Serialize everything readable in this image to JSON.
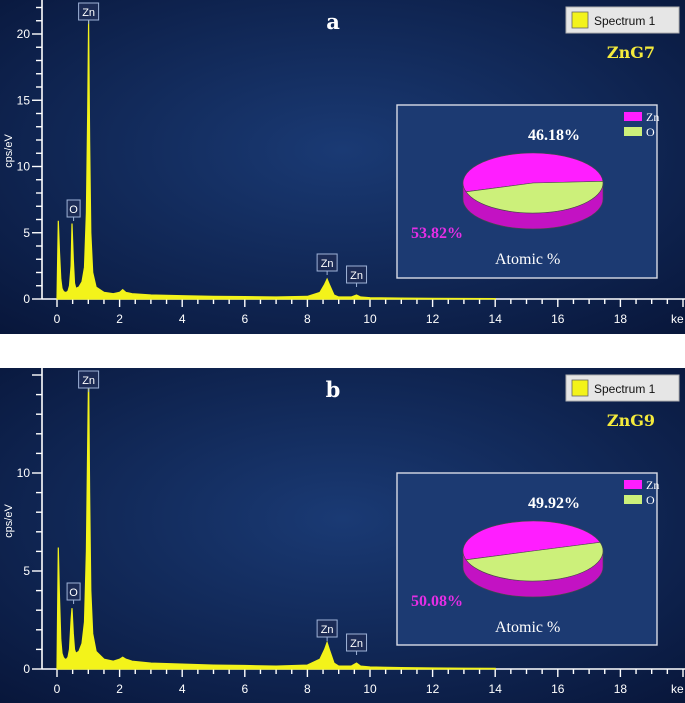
{
  "chart_data": [
    {
      "type": "line",
      "panel_label": "a",
      "sample": "ZnG7",
      "legend_label": "Spectrum 1",
      "ylabel": "cps/eV",
      "xlabel": "ke",
      "xlim": [
        -0.2,
        19.8
      ],
      "ylim": [
        0,
        22
      ],
      "xticks": [
        0,
        2,
        4,
        6,
        8,
        10,
        12,
        14,
        16,
        18
      ],
      "yticks": [
        0,
        5,
        10,
        15,
        20
      ],
      "series": [
        {
          "x": [
            0.0,
            0.04,
            0.08,
            0.12,
            0.16,
            0.2,
            0.25,
            0.3,
            0.35,
            0.4,
            0.45,
            0.48,
            0.52,
            0.56,
            0.6,
            0.7,
            0.8,
            0.88,
            0.94,
            0.98,
            1.01,
            1.04,
            1.08,
            1.14,
            1.25,
            1.5,
            1.8,
            2.0,
            2.1,
            2.2,
            2.4,
            3.0,
            4.0,
            5.0,
            6.0,
            7.0,
            8.0,
            8.4,
            8.55,
            8.63,
            8.7,
            8.85,
            9.0,
            9.4,
            9.57,
            9.7,
            10.0,
            11.0,
            12.0,
            13.0,
            14.0
          ],
          "y": [
            0.0,
            5.9,
            3.5,
            1.5,
            0.8,
            0.6,
            0.5,
            0.5,
            0.6,
            1.0,
            2.5,
            5.7,
            3.0,
            1.2,
            0.8,
            0.9,
            1.3,
            2.4,
            6.5,
            14.0,
            21.0,
            12.0,
            5.0,
            2.0,
            0.9,
            0.5,
            0.4,
            0.5,
            0.7,
            0.5,
            0.4,
            0.3,
            0.25,
            0.2,
            0.18,
            0.15,
            0.2,
            0.5,
            1.1,
            1.5,
            1.1,
            0.3,
            0.15,
            0.15,
            0.3,
            0.15,
            0.1,
            0.07,
            0.05,
            0.04,
            0.03
          ]
        }
      ],
      "peaks": [
        {
          "label": "Zn",
          "x": 1.01
        },
        {
          "label": "O",
          "x": 0.53
        },
        {
          "label": "Zn",
          "x": 8.63
        },
        {
          "label": "Zn",
          "x": 9.57
        }
      ],
      "inset_pie": {
        "type": "pie",
        "title": "Atomic %",
        "slices": [
          {
            "label": "Zn",
            "value": 53.82,
            "text": "53.82%",
            "color": "#ff1eff"
          },
          {
            "label": "O",
            "value": 46.18,
            "text": "46.18%",
            "color": "#ccf07a"
          }
        ]
      }
    },
    {
      "type": "line",
      "panel_label": "b",
      "sample": "ZnG9",
      "legend_label": "Spectrum 1",
      "ylabel": "cps/eV",
      "xlabel": "ke",
      "xlim": [
        -0.2,
        19.8
      ],
      "ylim": [
        0,
        15.4
      ],
      "xticks": [
        0,
        2,
        4,
        6,
        8,
        10,
        12,
        14,
        16,
        18
      ],
      "yticks": [
        0,
        5,
        10
      ],
      "series": [
        {
          "x": [
            0.0,
            0.04,
            0.08,
            0.12,
            0.16,
            0.2,
            0.25,
            0.3,
            0.35,
            0.4,
            0.45,
            0.48,
            0.52,
            0.56,
            0.6,
            0.7,
            0.8,
            0.88,
            0.94,
            0.98,
            1.01,
            1.04,
            1.08,
            1.14,
            1.25,
            1.5,
            1.8,
            2.0,
            2.1,
            2.2,
            2.4,
            3.0,
            4.0,
            5.0,
            6.0,
            7.0,
            8.0,
            8.4,
            8.55,
            8.63,
            8.7,
            8.85,
            9.0,
            9.4,
            9.57,
            9.7,
            10.0,
            11.0,
            12.0,
            13.0,
            14.0
          ],
          "y": [
            0.0,
            6.2,
            3.6,
            1.5,
            0.8,
            0.6,
            0.5,
            0.5,
            0.6,
            1.0,
            2.5,
            3.1,
            1.8,
            1.0,
            0.8,
            0.9,
            1.3,
            2.4,
            6.0,
            11.5,
            15.2,
            9.0,
            4.0,
            1.8,
            0.9,
            0.5,
            0.4,
            0.5,
            0.6,
            0.5,
            0.4,
            0.3,
            0.25,
            0.2,
            0.18,
            0.15,
            0.2,
            0.5,
            1.0,
            1.35,
            1.0,
            0.3,
            0.15,
            0.15,
            0.3,
            0.15,
            0.1,
            0.07,
            0.05,
            0.04,
            0.03
          ]
        }
      ],
      "peaks": [
        {
          "label": "Zn",
          "x": 1.01
        },
        {
          "label": "O",
          "x": 0.53
        },
        {
          "label": "Zn",
          "x": 8.63
        },
        {
          "label": "Zn",
          "x": 9.57
        }
      ],
      "inset_pie": {
        "type": "pie",
        "title": "Atomic %",
        "slices": [
          {
            "label": "Zn",
            "value": 50.08,
            "text": "50.08%",
            "color": "#ff1eff"
          },
          {
            "label": "O",
            "value": 49.92,
            "text": "49.92%",
            "color": "#ccf07a"
          }
        ]
      }
    }
  ],
  "colors": {
    "background_center": "#1a3a74",
    "background_edge": "#08163a",
    "spectrum": "#f3f31a",
    "axis": "#ffffff",
    "legend_box": "#f3f31a",
    "zn_label": "#e52ee5",
    "o_label": "#1f1f1f"
  }
}
